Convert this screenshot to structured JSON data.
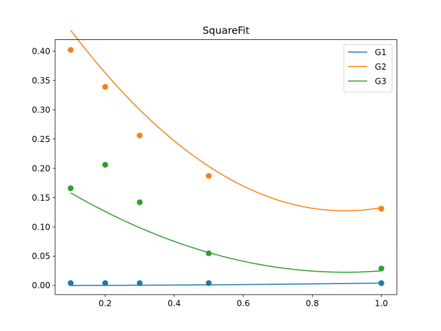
{
  "chart_data": {
    "type": "scatter",
    "title": "SquareFit",
    "xlabel": "",
    "ylabel": "",
    "xlim": [
      0.055,
      1.045
    ],
    "ylim": [
      -0.0155,
      0.4195
    ],
    "x_ticks": [
      0.2,
      0.4,
      0.6,
      0.8,
      1.0
    ],
    "x_tick_labels": [
      "0.2",
      "0.4",
      "0.6",
      "0.8",
      "1.0"
    ],
    "y_ticks": [
      0.0,
      0.05,
      0.1,
      0.15,
      0.2,
      0.25,
      0.3,
      0.35,
      0.4
    ],
    "y_tick_labels": [
      "0.00",
      "0.05",
      "0.10",
      "0.15",
      "0.20",
      "0.25",
      "0.30",
      "0.35",
      "0.40"
    ],
    "grid": false,
    "legend_position": "top-right",
    "series": [
      {
        "name": "G1",
        "color": "#1f77b4",
        "x": [
          0.1,
          0.2,
          0.3,
          0.5,
          1.0
        ],
        "y": [
          0.004,
          0.004,
          0.004,
          0.004,
          0.004
        ],
        "fit": {
          "x_range": [
            0.1,
            1.0
          ],
          "coeffs": [
            0.0,
            0.0005,
            0.0037
          ]
        }
      },
      {
        "name": "G2",
        "color": "#ff7f0e",
        "x": [
          0.1,
          0.2,
          0.3,
          0.5,
          1.0
        ],
        "y": [
          0.402,
          0.339,
          0.256,
          0.187,
          0.131
        ],
        "fit": {
          "x_range": [
            0.1,
            1.0
          ],
          "coeffs": [
            0.5183,
            -0.8742,
            0.4889
          ]
        }
      },
      {
        "name": "G3",
        "color": "#2ca02c",
        "x": [
          0.1,
          0.2,
          0.3,
          0.5,
          1.0
        ],
        "y": [
          0.166,
          0.206,
          0.142,
          0.055,
          0.029
        ],
        "fit": {
          "x_range": [
            0.1,
            1.0
          ],
          "coeffs": [
            0.1944,
            -0.3833,
            0.2139
          ]
        }
      }
    ]
  }
}
